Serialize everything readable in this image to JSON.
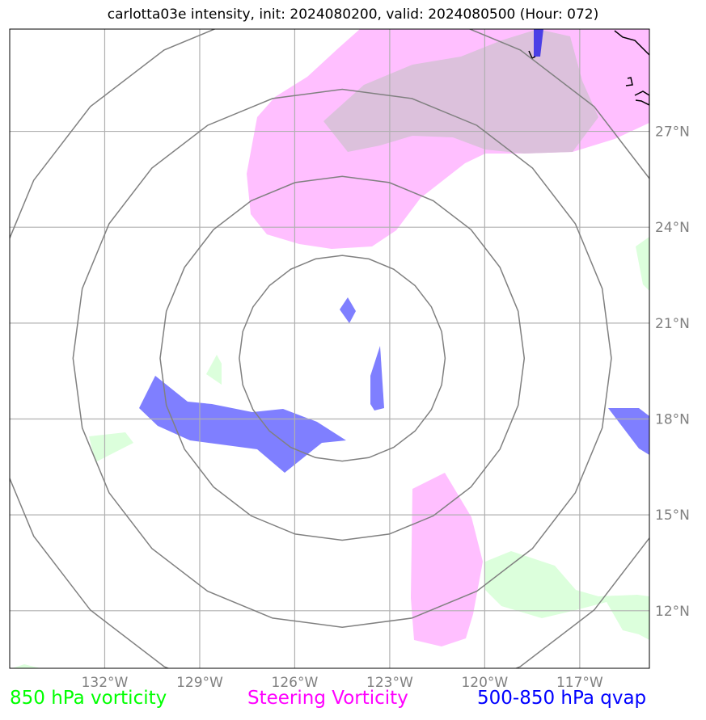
{
  "title": "carlotta03e intensity, init: 2024080200, valid: 2024080500 (Hour: 072)",
  "map_extent": {
    "lon_min": -135.0,
    "lon_max": -114.8,
    "lat_min": 10.2,
    "lat_max": 30.2
  },
  "gridlines": {
    "lons": [
      -132,
      -129,
      -126,
      -123,
      -120,
      -117
    ],
    "lats": [
      12,
      15,
      18,
      21,
      24,
      27
    ]
  },
  "lon_labels": [
    "132°W",
    "129°W",
    "126°W",
    "123°W",
    "120°W",
    "117°W"
  ],
  "lat_labels": [
    "12°N",
    "15°N",
    "18°N",
    "21°N",
    "24°N",
    "27°N"
  ],
  "range_rings": {
    "center_lon": -124.5,
    "center_lat": 19.9,
    "radii_deg": [
      3.25,
      5.75,
      8.5,
      11.25
    ]
  },
  "legend": {
    "vorticity_850": {
      "label": "850 hPa vorticity",
      "color": "#00ff00"
    },
    "steering_vorticity": {
      "label": "Steering Vorticity",
      "color": "#ff00ff"
    },
    "qvap": {
      "label": "500-850 hPa qvap",
      "color": "#0000ff"
    }
  },
  "colors": {
    "green_fill": "#dcffdc",
    "magenta_fill": "#ffbfff",
    "overlap_fill": "#dcc1dc",
    "blue_fill": "#7f7fff",
    "grid": "#b0b0b0",
    "ring": "#808080"
  }
}
